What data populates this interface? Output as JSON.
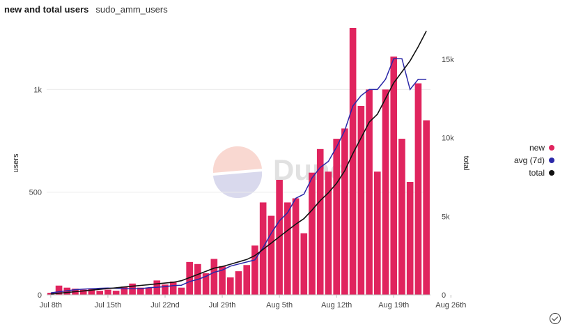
{
  "header": {
    "title": "new and total users",
    "subtitle": "sudo_amm_users"
  },
  "watermark": "Dune",
  "colors": {
    "new": "#e0245e",
    "avg": "#2b28a8",
    "total": "#111111",
    "grid": "#ececec"
  },
  "legend": [
    {
      "label": "new",
      "color": "#e0245e"
    },
    {
      "label": "avg (7d)",
      "color": "#2b28a8"
    },
    {
      "label": "total",
      "color": "#111111"
    }
  ],
  "chart_data": {
    "type": "bar",
    "ylabel": "users",
    "y2label": "total",
    "ylim": [
      0,
      1300
    ],
    "y2lim": [
      0,
      17000
    ],
    "y_ticks": [
      {
        "v": 0,
        "label": "0"
      },
      {
        "v": 500,
        "label": "500"
      },
      {
        "v": 1000,
        "label": "1k"
      }
    ],
    "y2_ticks": [
      {
        "v": 0,
        "label": "0"
      },
      {
        "v": 5000,
        "label": "5k"
      },
      {
        "v": 10000,
        "label": "10k"
      },
      {
        "v": 15000,
        "label": "15k"
      }
    ],
    "x_ticks": [
      {
        "i": 0,
        "label": "Jul 8th"
      },
      {
        "i": 7,
        "label": "Jul 15th"
      },
      {
        "i": 14,
        "label": "Jul 22nd"
      },
      {
        "i": 21,
        "label": "Jul 29th"
      },
      {
        "i": 28,
        "label": "Aug 5th"
      },
      {
        "i": 35,
        "label": "Aug 12th"
      },
      {
        "i": 42,
        "label": "Aug 19th"
      },
      {
        "i": 49,
        "label": "Aug 26th"
      }
    ],
    "series": [
      {
        "name": "new",
        "type": "bar",
        "values": [
          10,
          45,
          35,
          30,
          25,
          28,
          20,
          25,
          20,
          40,
          55,
          35,
          35,
          70,
          50,
          65,
          35,
          160,
          150,
          105,
          175,
          140,
          85,
          115,
          145,
          240,
          450,
          385,
          560,
          450,
          470,
          300,
          595,
          710,
          600,
          760,
          810,
          1300,
          920,
          1000,
          600,
          1000,
          1160,
          760,
          550,
          1030,
          850
        ]
      },
      {
        "name": "avg (7d)",
        "type": "line",
        "values": [
          10,
          15,
          20,
          25,
          28,
          30,
          32,
          33,
          32,
          30,
          30,
          30,
          35,
          37,
          40,
          45,
          47,
          65,
          75,
          90,
          110,
          120,
          140,
          150,
          160,
          170,
          230,
          300,
          360,
          400,
          470,
          490,
          570,
          620,
          650,
          720,
          800,
          920,
          970,
          1000,
          1000,
          1050,
          1150,
          1150,
          1000,
          1050,
          1050
        ]
      },
      {
        "name": "total",
        "type": "line",
        "axis": "right",
        "values": [
          50,
          100,
          150,
          200,
          250,
          300,
          350,
          400,
          450,
          500,
          550,
          600,
          650,
          700,
          750,
          800,
          900,
          1100,
          1300,
          1500,
          1700,
          1800,
          1950,
          2100,
          2250,
          2500,
          2900,
          3300,
          3700,
          4100,
          4500,
          4850,
          5400,
          6000,
          6500,
          7100,
          7900,
          9000,
          10000,
          11000,
          11500,
          12500,
          13500,
          14200,
          14900,
          15800,
          16800
        ]
      }
    ]
  }
}
